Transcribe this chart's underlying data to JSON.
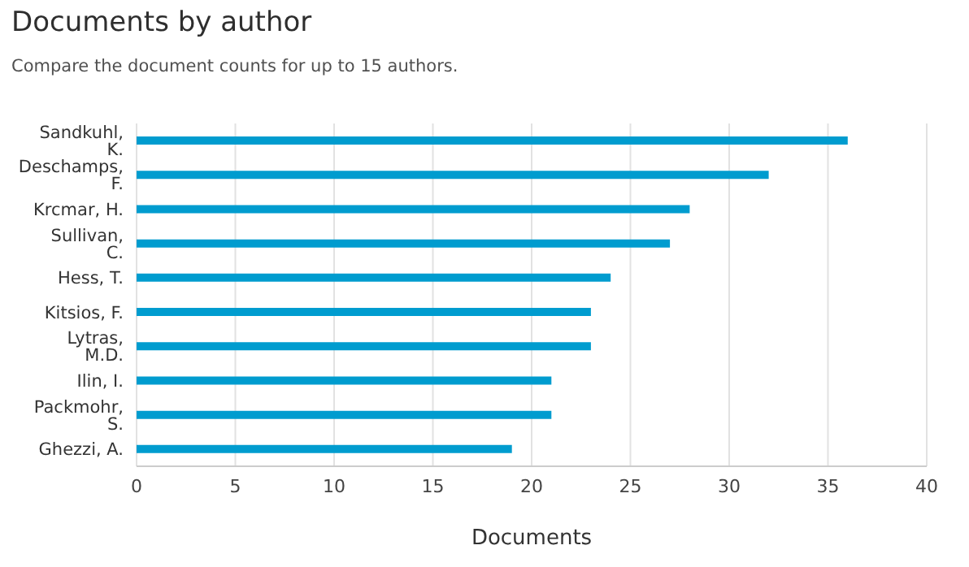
{
  "chart_data": {
    "type": "bar",
    "orientation": "horizontal",
    "title": "Documents by author",
    "subtitle": "Compare the document counts for up to 15 authors.",
    "xlabel": "Documents",
    "categories": [
      "Sandkuhl, K.",
      "Deschamps, F.",
      "Krcmar, H.",
      "Sullivan, C.",
      "Hess, T.",
      "Kitsios, F.",
      "Lytras, M.D.",
      "Ilin, I.",
      "Packmohr, S.",
      "Ghezzi, A."
    ],
    "values": [
      36,
      32,
      28,
      27,
      24,
      23,
      23,
      21,
      21,
      19
    ],
    "color": "#009ccf",
    "xlim": [
      0,
      40
    ],
    "xticks": [
      0,
      5,
      10,
      15,
      20,
      25,
      30,
      35,
      40
    ],
    "grid": "x"
  }
}
